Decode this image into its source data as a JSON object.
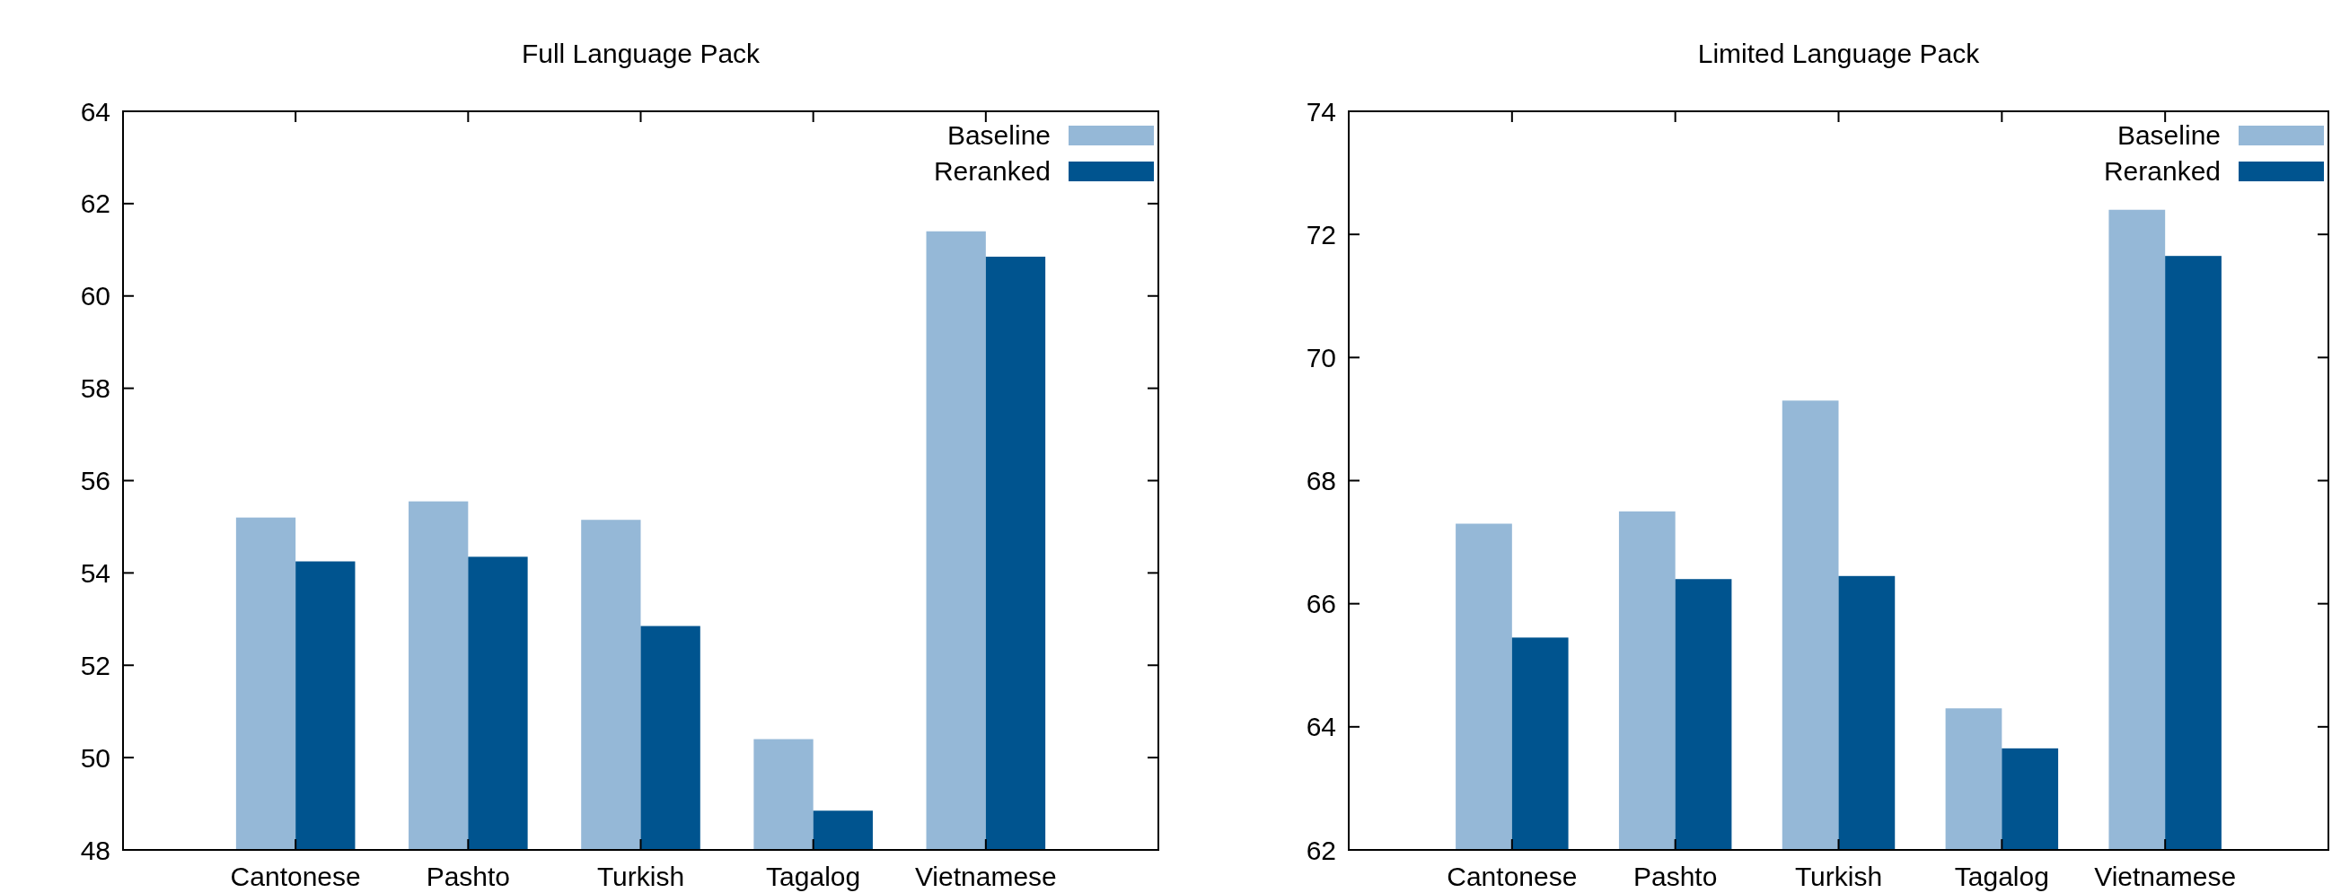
{
  "chart_data": [
    {
      "type": "bar",
      "title": "Full Language Pack",
      "categories": [
        "Cantonese",
        "Pashto",
        "Turkish",
        "Tagalog",
        "Vietnamese"
      ],
      "series": [
        {
          "name": "Baseline",
          "color": "#95b8d7",
          "values": [
            55.2,
            55.55,
            55.15,
            50.4,
            61.4
          ]
        },
        {
          "name": "Reranked",
          "color": "#00548f",
          "values": [
            54.25,
            54.35,
            52.85,
            48.85,
            60.85
          ]
        }
      ],
      "ylim": [
        48,
        64
      ],
      "yticks": [
        48,
        50,
        52,
        54,
        56,
        58,
        60,
        62,
        64
      ],
      "legend": "top right"
    },
    {
      "type": "bar",
      "title": "Limited Language Pack",
      "categories": [
        "Cantonese",
        "Pashto",
        "Turkish",
        "Tagalog",
        "Vietnamese"
      ],
      "series": [
        {
          "name": "Baseline",
          "color": "#95b8d7",
          "values": [
            67.3,
            67.5,
            69.3,
            64.3,
            72.4
          ]
        },
        {
          "name": "Reranked",
          "color": "#00548f",
          "values": [
            65.45,
            66.4,
            66.45,
            63.65,
            71.65
          ]
        }
      ],
      "ylim": [
        62,
        74
      ],
      "yticks": [
        62,
        64,
        66,
        68,
        70,
        72,
        74
      ],
      "legend": "top right"
    }
  ]
}
